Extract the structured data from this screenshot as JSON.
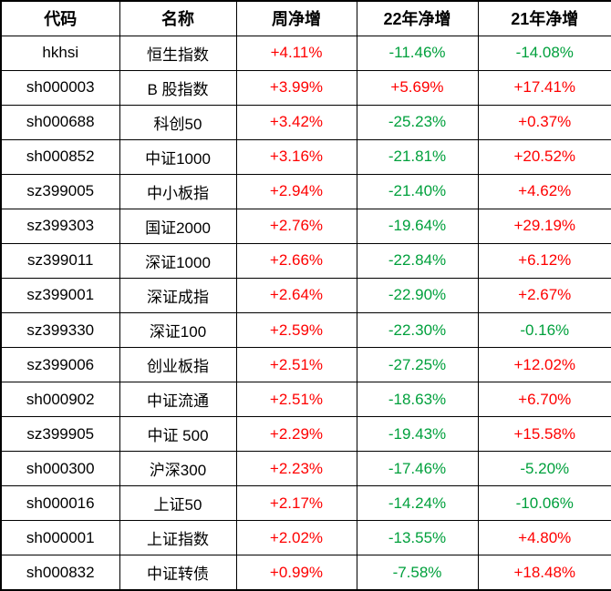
{
  "colors": {
    "positive": "#fe0000",
    "negative": "#00a03c",
    "border": "#000000",
    "text": "#000000",
    "background": "#ffffff"
  },
  "chart_data": {
    "type": "table",
    "columns": [
      "代码",
      "名称",
      "周净增",
      "22年净增",
      "21年净增"
    ],
    "rows": [
      [
        "hkhsi",
        "恒生指数",
        "+4.11%",
        "-11.46%",
        "-14.08%"
      ],
      [
        "sh000003",
        "B 股指数",
        "+3.99%",
        "+5.69%",
        "+17.41%"
      ],
      [
        "sh000688",
        "科创50",
        "+3.42%",
        "-25.23%",
        "+0.37%"
      ],
      [
        "sh000852",
        "中证1000",
        "+3.16%",
        "-21.81%",
        "+20.52%"
      ],
      [
        "sz399005",
        "中小板指",
        "+2.94%",
        "-21.40%",
        "+4.62%"
      ],
      [
        "sz399303",
        "国证2000",
        "+2.76%",
        "-19.64%",
        "+29.19%"
      ],
      [
        "sz399011",
        "深证1000",
        "+2.66%",
        "-22.84%",
        "+6.12%"
      ],
      [
        "sz399001",
        "深证成指",
        "+2.64%",
        "-22.90%",
        "+2.67%"
      ],
      [
        "sz399330",
        "深证100",
        "+2.59%",
        "-22.30%",
        "-0.16%"
      ],
      [
        "sz399006",
        "创业板指",
        "+2.51%",
        "-27.25%",
        "+12.02%"
      ],
      [
        "sh000902",
        "中证流通",
        "+2.51%",
        "-18.63%",
        "+6.70%"
      ],
      [
        "sz399905",
        "中证 500",
        "+2.29%",
        "-19.43%",
        "+15.58%"
      ],
      [
        "sh000300",
        "沪深300",
        "+2.23%",
        "-17.46%",
        "-5.20%"
      ],
      [
        "sh000016",
        "上证50",
        "+2.17%",
        "-14.24%",
        "-10.06%"
      ],
      [
        "sh000001",
        "上证指数",
        "+2.02%",
        "-13.55%",
        "+4.80%"
      ],
      [
        "sh000832",
        "中证转债",
        "+0.99%",
        "-7.58%",
        "+18.48%"
      ]
    ]
  }
}
